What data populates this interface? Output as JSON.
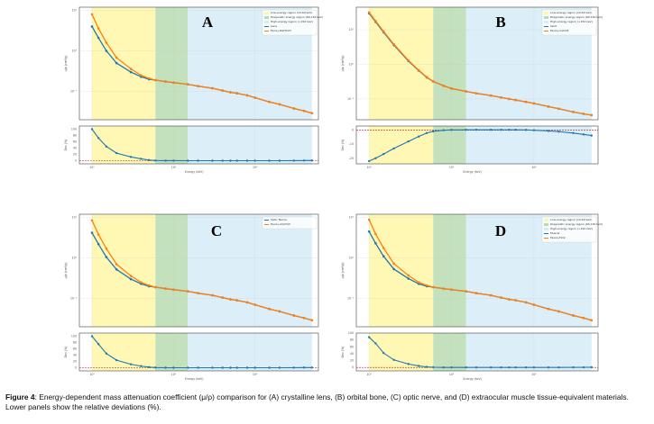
{
  "caption": {
    "label": "Figure 4",
    "text": ": Energy-dependent mass attenuation coefficient (μ/ρ) comparison for (A) crystalline lens, (B) orbital bone, (C) optic nerve, and (D) extraocular muscle tissue-equivalent materials. Lower panels show the relative deviations (%)."
  },
  "colors": {
    "tissue": "#1f77b4",
    "substitute": "#ff7f0e",
    "low_region": "#fff7a8",
    "diag_region": "#b7dcb0",
    "high_region": "#d6ebf7",
    "zero_line": "#a02020"
  },
  "chart_data": [
    {
      "type": "line",
      "panel_label": "A",
      "x": [
        10,
        12,
        15,
        20,
        30,
        40,
        50,
        60,
        80,
        100,
        150,
        200,
        300,
        400,
        500,
        600,
        800,
        1000,
        1500,
        2000,
        3000,
        4000,
        5000
      ],
      "series": [
        {
          "name": "Lens",
          "values": [
            4.0,
            2.1,
            1.0,
            0.5,
            0.3,
            0.23,
            0.2,
            0.19,
            0.175,
            0.165,
            0.15,
            0.135,
            0.12,
            0.105,
            0.095,
            0.09,
            0.08,
            0.07,
            0.055,
            0.048,
            0.038,
            0.033,
            0.029
          ]
        },
        {
          "name": "Epoxy-NaHCO3",
          "values": [
            8.0,
            3.6,
            1.6,
            0.68,
            0.36,
            0.25,
            0.21,
            0.19,
            0.175,
            0.165,
            0.15,
            0.135,
            0.12,
            0.105,
            0.095,
            0.09,
            0.08,
            0.07,
            0.055,
            0.048,
            0.038,
            0.033,
            0.029
          ]
        }
      ],
      "deviation": [
        100,
        72,
        45,
        24,
        12,
        6,
        2,
        0.5,
        0.2,
        0.1,
        0,
        0,
        0,
        0,
        0,
        0,
        0,
        0,
        0,
        0,
        0.3,
        0.6,
        0.8
      ],
      "legend": [
        "Low-energy region (10-60 keV)",
        "Diagnostic energy region (60-150 keV)",
        "High-energy region (>150 keV)",
        "Lens",
        "Epoxy-NaHCO3"
      ],
      "regions": [
        [
          10,
          60
        ],
        [
          60,
          150
        ],
        [
          150,
          5000
        ]
      ],
      "xscale": "log",
      "yscale": "log",
      "xlim": [
        7,
        6000
      ],
      "ylim": [
        0.02,
        12
      ],
      "dev_ylim": [
        -10,
        110
      ]
    },
    {
      "type": "line",
      "panel_label": "B",
      "x": [
        10,
        12,
        15,
        20,
        30,
        40,
        50,
        60,
        80,
        100,
        150,
        200,
        300,
        400,
        500,
        600,
        800,
        1000,
        1500,
        2000,
        3000,
        4000,
        5000
      ],
      "series": [
        {
          "name": "Skull",
          "values": [
            30,
            17,
            8.5,
            3.6,
            1.25,
            0.66,
            0.42,
            0.32,
            0.24,
            0.2,
            0.165,
            0.145,
            0.125,
            0.11,
            0.1,
            0.093,
            0.082,
            0.074,
            0.06,
            0.052,
            0.042,
            0.037,
            0.034
          ]
        },
        {
          "name": "Epoxy-CaCO3",
          "values": [
            32,
            18,
            9.0,
            3.8,
            1.3,
            0.68,
            0.43,
            0.32,
            0.24,
            0.2,
            0.165,
            0.145,
            0.125,
            0.11,
            0.1,
            0.093,
            0.082,
            0.074,
            0.06,
            0.052,
            0.042,
            0.037,
            0.034
          ]
        }
      ],
      "deviation": [
        -22,
        -20,
        -17,
        -13,
        -8,
        -4.5,
        -2,
        -0.8,
        0,
        0.2,
        0.3,
        0.3,
        0.3,
        0.3,
        0.3,
        0.3,
        0.2,
        0,
        -0.5,
        -1,
        -2,
        -3,
        -3.8
      ],
      "tick_labels_dev": [
        "-20.0",
        "-17.5",
        "-15.0",
        "-12.5",
        "-10.0",
        "-7.5",
        "-5.0",
        "-2.5",
        "0.0"
      ],
      "legend": [
        "Low-energy region (10-60 keV)",
        "Diagnostic energy region (60-150 keV)",
        "High-energy region (>150 keV)",
        "Skull",
        "Epoxy-CaCO3"
      ],
      "regions": [
        [
          10,
          60
        ],
        [
          60,
          150
        ],
        [
          150,
          5000
        ]
      ],
      "xscale": "log",
      "yscale": "log",
      "xlim": [
        7,
        6000
      ],
      "ylim": [
        0.025,
        45
      ],
      "dev_ylim": [
        -24,
        3
      ]
    },
    {
      "type": "line",
      "panel_label": "C",
      "x": [
        10,
        12,
        15,
        20,
        30,
        40,
        50,
        60,
        80,
        100,
        150,
        200,
        300,
        400,
        500,
        600,
        800,
        1000,
        1500,
        2000,
        3000,
        4000,
        5000
      ],
      "series": [
        {
          "name": "Optic Nerve",
          "values": [
            4.2,
            2.2,
            1.05,
            0.52,
            0.3,
            0.23,
            0.2,
            0.19,
            0.175,
            0.165,
            0.15,
            0.135,
            0.12,
            0.105,
            0.095,
            0.09,
            0.08,
            0.07,
            0.055,
            0.048,
            0.038,
            0.033,
            0.029
          ]
        },
        {
          "name": "Epoxy-Al(OH)3",
          "values": [
            8.5,
            3.8,
            1.7,
            0.7,
            0.36,
            0.25,
            0.21,
            0.19,
            0.175,
            0.165,
            0.15,
            0.135,
            0.12,
            0.105,
            0.095,
            0.09,
            0.08,
            0.07,
            0.055,
            0.048,
            0.038,
            0.033,
            0.029
          ]
        }
      ],
      "deviation": [
        100,
        75,
        45,
        24,
        11,
        5,
        2,
        0.5,
        0,
        0,
        0,
        0,
        0,
        0,
        0,
        0,
        0,
        0,
        0,
        0,
        0.2,
        0.4,
        0.6
      ],
      "legend": [
        "Optic Nerve",
        "Epoxy-Al(OH)3"
      ],
      "regions": [
        [
          10,
          60
        ],
        [
          60,
          150
        ],
        [
          150,
          5000
        ]
      ],
      "xscale": "log",
      "yscale": "log",
      "xlim": [
        7,
        6000
      ],
      "ylim": [
        0.02,
        12
      ],
      "dev_ylim": [
        -10,
        110
      ]
    },
    {
      "type": "line",
      "panel_label": "D",
      "x": [
        10,
        12,
        15,
        20,
        30,
        40,
        50,
        60,
        80,
        100,
        150,
        200,
        300,
        400,
        500,
        600,
        800,
        1000,
        1500,
        2000,
        3000,
        4000,
        5000
      ],
      "series": [
        {
          "name": "Muscle",
          "values": [
            4.5,
            2.3,
            1.1,
            0.53,
            0.31,
            0.23,
            0.2,
            0.19,
            0.175,
            0.165,
            0.15,
            0.135,
            0.12,
            0.105,
            0.095,
            0.09,
            0.08,
            0.07,
            0.055,
            0.048,
            0.038,
            0.033,
            0.029
          ]
        },
        {
          "name": "Epoxy-TiO2",
          "values": [
            8.8,
            3.9,
            1.75,
            0.72,
            0.37,
            0.25,
            0.21,
            0.19,
            0.175,
            0.165,
            0.15,
            0.135,
            0.12,
            0.105,
            0.095,
            0.09,
            0.08,
            0.07,
            0.055,
            0.048,
            0.038,
            0.033,
            0.029
          ]
        }
      ],
      "deviation": [
        88,
        70,
        42,
        22,
        10,
        4.5,
        1.5,
        0.5,
        0,
        0,
        0,
        0,
        0,
        0,
        0,
        0,
        0,
        0,
        0,
        0,
        0.2,
        0.4,
        0.6
      ],
      "legend": [
        "Low-energy region (10-60 keV)",
        "Diagnostic energy region (60-150 keV)",
        "High-energy region (>150 keV)",
        "Muscle",
        "Epoxy-TiO2"
      ],
      "regions": [
        [
          10,
          60
        ],
        [
          60,
          150
        ],
        [
          150,
          5000
        ]
      ],
      "xscale": "log",
      "yscale": "log",
      "xlim": [
        7,
        6000
      ],
      "ylim": [
        0.02,
        12
      ],
      "dev_ylim": [
        -10,
        100
      ]
    }
  ]
}
